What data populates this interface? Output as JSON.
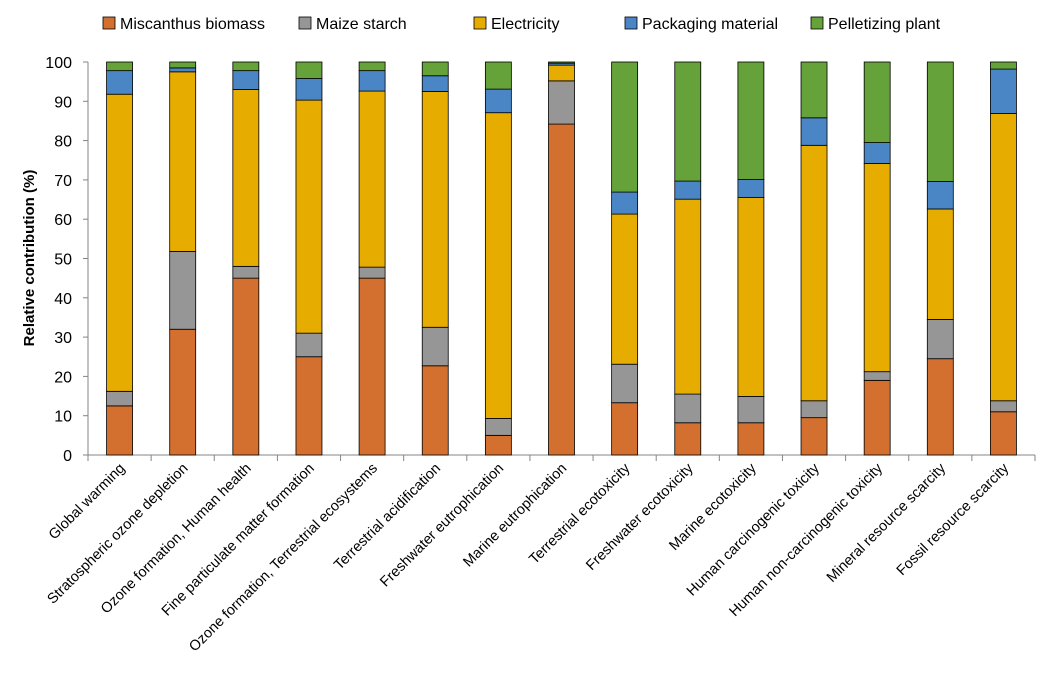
{
  "chart_data": {
    "type": "bar",
    "stacked": true,
    "title": "",
    "xlabel": "",
    "ylabel": "Relative contribution (%)",
    "ylim": [
      0,
      100
    ],
    "yticks": [
      0,
      10,
      20,
      30,
      40,
      50,
      60,
      70,
      80,
      90,
      100
    ],
    "grid": false,
    "legend_position": "top",
    "categories": [
      "Global warming",
      "Stratospheric ozone depletion",
      "Ozone formation, Human health",
      "Fine particulate matter formation",
      "Ozone formation, Terrestrial ecosystems",
      "Terrestrial acidification",
      "Freshwater eutrophication",
      "Marine eutrophication",
      "Terrestrial ecotoxicity",
      "Freshwater ecotoxicity",
      "Marine ecotoxicity",
      "Human carcinogenic toxicity",
      "Human non-carcinogenic toxicity",
      "Mineral resource scarcity",
      "Fossil resource scarcity"
    ],
    "series": [
      {
        "name": "Miscanthus biomass",
        "color": "#D4702F",
        "values": [
          12.5,
          32.0,
          45.0,
          25.0,
          45.0,
          22.7,
          5.0,
          84.2,
          13.3,
          8.2,
          8.2,
          9.5,
          19.0,
          24.5,
          11.0
        ]
      },
      {
        "name": "Maize starch",
        "color": "#969696",
        "values": [
          3.7,
          19.8,
          3.0,
          6.0,
          2.8,
          9.8,
          4.3,
          11.0,
          9.8,
          7.3,
          6.7,
          4.3,
          2.2,
          10.0,
          2.8
        ]
      },
      {
        "name": "Electricity",
        "color": "#E6AC00",
        "values": [
          75.6,
          45.7,
          45.0,
          59.3,
          44.8,
          60.0,
          77.8,
          4.0,
          38.2,
          49.6,
          50.6,
          65.0,
          53.0,
          28.1,
          73.1
        ]
      },
      {
        "name": "Packaging material",
        "color": "#4A86C5",
        "values": [
          6.0,
          1.0,
          4.8,
          5.5,
          5.2,
          4.0,
          6.0,
          0.5,
          5.6,
          4.6,
          4.6,
          7.0,
          5.3,
          7.0,
          11.3
        ]
      },
      {
        "name": "Pelletizing plant",
        "color": "#66A23A",
        "values": [
          2.2,
          1.5,
          2.2,
          4.2,
          2.2,
          3.5,
          6.9,
          0.3,
          33.1,
          30.3,
          29.9,
          14.2,
          20.5,
          30.4,
          1.8
        ]
      }
    ]
  }
}
